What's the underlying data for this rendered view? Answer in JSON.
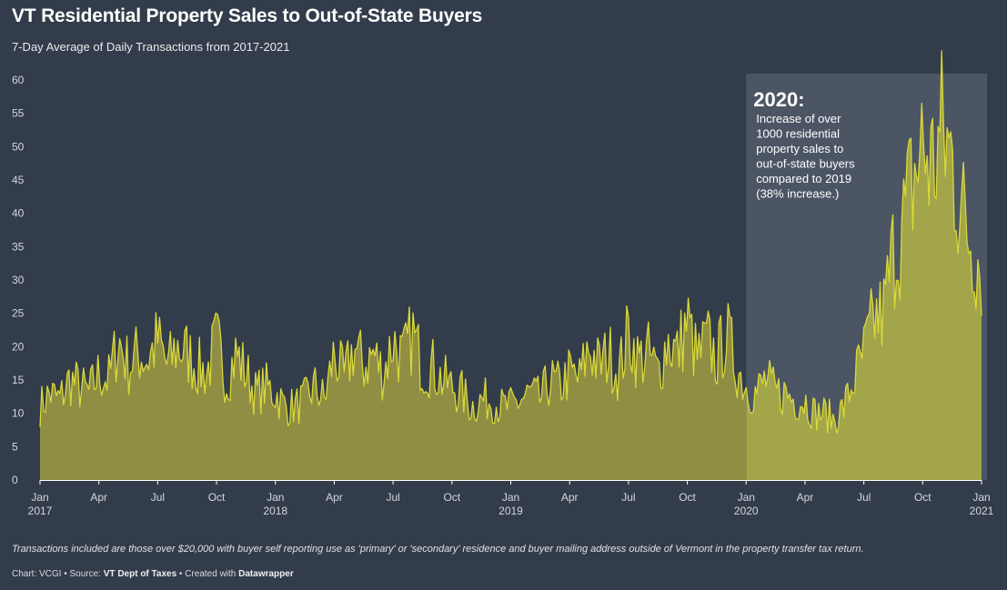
{
  "header": {
    "title": "VT Residential Property Sales to Out-of-State Buyers",
    "subtitle": "7-Day Average of Daily Transactions from 2017-2021"
  },
  "footer": {
    "note": "Transactions included are those over $20,000 with buyer self reporting use as 'primary' or 'secondary' residence and buyer mailing address outside of Vermont in the property transfer tax return.",
    "credit_prefix": "Chart: VCGI • Source: ",
    "source": "VT Dept of Taxes",
    "credit_mid": " • Created with ",
    "tool": "Datawrapper"
  },
  "colors": {
    "background": "#333c4a",
    "area_fill": "#8f8e42",
    "area_fill_highlight": "#a2a54a",
    "line": "#d9d83a",
    "highlight_band": "#4c5564",
    "axis_line": "#ffffff",
    "tick_text": "#d4d8de"
  },
  "chart_data": {
    "type": "area",
    "title": "VT Residential Property Sales to Out-of-State Buyers",
    "subtitle": "7-Day Average of Daily Transactions from 2017-2021",
    "xlabel": "",
    "ylabel": "",
    "ylim": [
      0,
      60
    ],
    "y_ticks": [
      0,
      5,
      10,
      15,
      20,
      25,
      30,
      35,
      40,
      45,
      50,
      55,
      60
    ],
    "x_ticks": [
      {
        "label": "Jan",
        "year": "2017"
      },
      {
        "label": "Apr",
        "year": ""
      },
      {
        "label": "Jul",
        "year": ""
      },
      {
        "label": "Oct",
        "year": ""
      },
      {
        "label": "Jan",
        "year": "2018"
      },
      {
        "label": "Apr",
        "year": ""
      },
      {
        "label": "Jul",
        "year": ""
      },
      {
        "label": "Oct",
        "year": ""
      },
      {
        "label": "Jan",
        "year": "2019"
      },
      {
        "label": "Apr",
        "year": ""
      },
      {
        "label": "Jul",
        "year": ""
      },
      {
        "label": "Oct",
        "year": ""
      },
      {
        "label": "Jan",
        "year": "2020"
      },
      {
        "label": "Apr",
        "year": ""
      },
      {
        "label": "Jul",
        "year": ""
      },
      {
        "label": "Oct",
        "year": ""
      },
      {
        "label": "Jan",
        "year": "2021"
      }
    ],
    "x_unit": "months since Jan 2017",
    "series": [
      {
        "name": "7-day average of daily transactions",
        "x": [
          0,
          0.5,
          1,
          1.5,
          2,
          2.5,
          3,
          3.5,
          4,
          4.5,
          5,
          5.5,
          6,
          6.5,
          7,
          7.5,
          8,
          8.5,
          9,
          9.5,
          10,
          10.5,
          11,
          11.5,
          12,
          12.5,
          13,
          13.5,
          14,
          14.5,
          15,
          15.5,
          16,
          16.5,
          17,
          17.5,
          18,
          18.5,
          19,
          19.5,
          20,
          20.5,
          21,
          21.5,
          22,
          22.5,
          23,
          23.5,
          24,
          24.5,
          25,
          25.5,
          26,
          26.5,
          27,
          27.5,
          28,
          28.5,
          29,
          29.5,
          30,
          30.5,
          31,
          31.5,
          32,
          32.5,
          33,
          33.5,
          34,
          34.5,
          35,
          35.5,
          36,
          36.5,
          37,
          37.5,
          38,
          38.5,
          39,
          39.5,
          40,
          40.5,
          41,
          41.5,
          42,
          42.5,
          43,
          43.5,
          44,
          44.5,
          45,
          45.5,
          46,
          46.5,
          47,
          47.5,
          48
        ],
        "values": [
          11,
          13,
          12,
          15,
          14,
          13,
          16,
          15,
          21,
          17,
          19,
          18,
          21,
          17,
          20,
          19,
          17,
          16,
          21,
          15,
          19,
          16,
          13,
          14,
          13,
          11,
          11,
          12,
          14,
          12,
          19,
          15,
          20,
          17,
          19,
          16,
          21,
          18,
          22,
          17,
          17,
          15,
          14,
          13,
          11,
          12,
          12,
          11,
          11,
          12,
          13,
          12,
          15,
          14,
          16,
          15,
          20,
          17,
          19,
          16,
          22,
          18,
          19,
          16,
          21,
          19,
          24,
          18,
          21,
          18,
          22,
          17,
          14,
          13,
          15,
          13,
          13,
          12,
          12,
          10,
          10,
          9,
          11,
          15,
          19,
          24,
          25,
          34,
          38,
          45,
          50,
          47,
          52,
          48,
          40,
          36,
          32
        ]
      }
    ],
    "highlight": {
      "start": "Jan 2020",
      "end": "Jan 2021",
      "start_x": 36,
      "end_x": 48
    },
    "annotation": {
      "heading": "2020:",
      "lines": [
        "Increase of over",
        "1000 residential",
        "property sales to",
        "out-of-state buyers",
        "compared to 2019",
        "(38% increase.)"
      ]
    }
  }
}
